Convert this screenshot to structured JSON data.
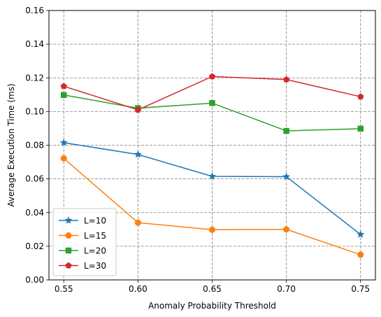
{
  "chart_data": {
    "type": "line",
    "title": "",
    "xlabel": "Anomaly Probability Threshold",
    "ylabel": "Average Execution Time (ms)",
    "x": [
      0.55,
      0.6,
      0.65,
      0.7,
      0.75
    ],
    "xlim": [
      0.54,
      0.76
    ],
    "ylim": [
      0.0,
      0.16
    ],
    "xticks": [
      0.55,
      0.6,
      0.65,
      0.7,
      0.75
    ],
    "xtick_labels": [
      "0.55",
      "0.60",
      "0.65",
      "0.70",
      "0.75"
    ],
    "yticks": [
      0.0,
      0.02,
      0.04,
      0.06,
      0.08,
      0.1,
      0.12,
      0.14,
      0.16
    ],
    "ytick_labels": [
      "0.00",
      "0.02",
      "0.04",
      "0.06",
      "0.08",
      "0.10",
      "0.12",
      "0.14",
      "0.16"
    ],
    "grid": true,
    "legend_position": "lower-left",
    "series": [
      {
        "name": "L=10",
        "color": "#1f77b4",
        "marker": "star",
        "values": [
          0.0815,
          0.0745,
          0.0615,
          0.0613,
          0.027
        ]
      },
      {
        "name": "L=15",
        "color": "#ff7f0e",
        "marker": "circle",
        "values": [
          0.0722,
          0.034,
          0.0298,
          0.03,
          0.015
        ]
      },
      {
        "name": "L=20",
        "color": "#2ca02c",
        "marker": "square",
        "values": [
          0.1098,
          0.102,
          0.105,
          0.0885,
          0.0898
        ]
      },
      {
        "name": "L=30",
        "color": "#d62728",
        "marker": "pentagon",
        "values": [
          0.115,
          0.101,
          0.1208,
          0.119,
          0.1088
        ]
      }
    ]
  }
}
